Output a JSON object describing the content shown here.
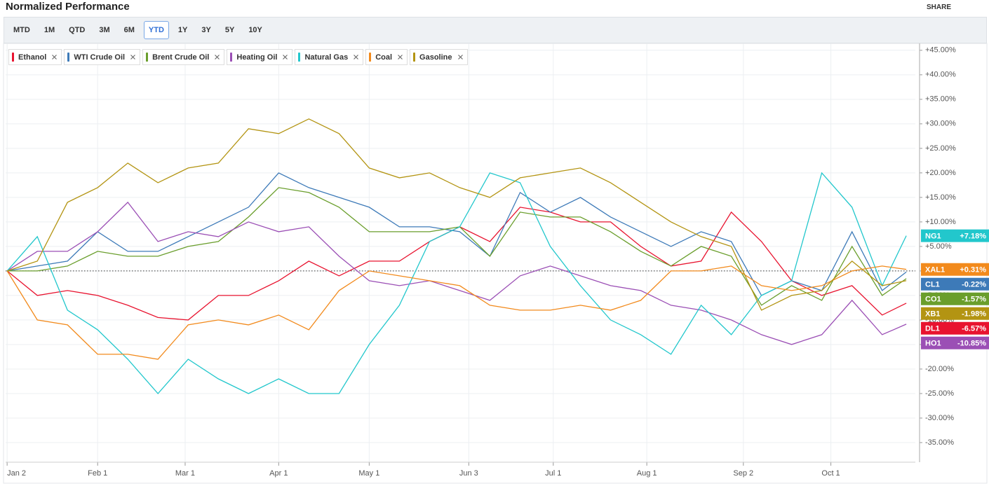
{
  "share": "SHARE",
  "toolbar": {
    "periods": [
      "MTD",
      "1M",
      "QTD",
      "3M",
      "6M",
      "YTD",
      "1Y",
      "3Y",
      "5Y",
      "10Y"
    ],
    "active": "YTD"
  },
  "chart_data": {
    "type": "line",
    "title": "Normalized Performance",
    "x": [
      2,
      12,
      22,
      32,
      42,
      52,
      62,
      72,
      82,
      92,
      102,
      112,
      122,
      132,
      142,
      152,
      162,
      172,
      182,
      192,
      202,
      212,
      222,
      232,
      242,
      252,
      262,
      272,
      282,
      292,
      300
    ],
    "xlim": [
      1.5,
      303
    ],
    "xticks": [
      {
        "value": 2,
        "label": "Jan 2"
      },
      {
        "value": 32,
        "label": "Feb 1"
      },
      {
        "value": 61,
        "label": "Mar 1"
      },
      {
        "value": 92,
        "label": "Apr 1"
      },
      {
        "value": 122,
        "label": "May 1"
      },
      {
        "value": 155,
        "label": "Jun 3"
      },
      {
        "value": 183,
        "label": "Jul 1"
      },
      {
        "value": 214,
        "label": "Aug 1"
      },
      {
        "value": 246,
        "label": "Sep 2"
      },
      {
        "value": 275,
        "label": "Oct 1"
      }
    ],
    "ylim": [
      -39,
      46.4
    ],
    "yticks": [
      {
        "value": 45,
        "label": "+45.00%"
      },
      {
        "value": 40,
        "label": "+40.00%"
      },
      {
        "value": 35,
        "label": "+35.00%"
      },
      {
        "value": 30,
        "label": "+30.00%"
      },
      {
        "value": 25,
        "label": "+25.00%"
      },
      {
        "value": 20,
        "label": "+20.00%"
      },
      {
        "value": 15,
        "label": "+15.00%"
      },
      {
        "value": 10,
        "label": "+10.00%"
      },
      {
        "value": 5,
        "label": "+5.00%"
      },
      {
        "value": 0,
        "label": "0.00%"
      },
      {
        "value": -5,
        "label": "-5.00%"
      },
      {
        "value": -10,
        "label": "-10.00%"
      },
      {
        "value": -15,
        "label": "-15.00%"
      },
      {
        "value": -20,
        "label": "-20.00%"
      },
      {
        "value": -25,
        "label": "-25.00%"
      },
      {
        "value": -30,
        "label": "-30.00%"
      },
      {
        "value": -35,
        "label": "-35.00%"
      }
    ],
    "grid": true,
    "series": [
      {
        "name": "Ethanol",
        "ticker": "DL1",
        "end_label": "-6.57%",
        "color": "#e8132f",
        "values": [
          0,
          -5,
          -4,
          -5,
          -7,
          -9.5,
          -10,
          -5,
          -5,
          -2,
          2,
          -1,
          2,
          2,
          6,
          9,
          6,
          13,
          12,
          10,
          10,
          5,
          1,
          2,
          12,
          6,
          -2,
          -5,
          -3,
          -9,
          -6.57
        ]
      },
      {
        "name": "WTI Crude Oil",
        "ticker": "CL1",
        "end_label": "-0.22%",
        "color": "#3d7ab8",
        "values": [
          0,
          1,
          2,
          8,
          4,
          4,
          7,
          10,
          13,
          20,
          17,
          15,
          13,
          9,
          9,
          8,
          3,
          16,
          12,
          15,
          11,
          8,
          5,
          8,
          6,
          -5,
          -2,
          -4,
          8,
          -4,
          -0.22
        ]
      },
      {
        "name": "Brent Crude Oil",
        "ticker": "CO1",
        "end_label": "-1.57%",
        "color": "#6a9e2c",
        "values": [
          0,
          0,
          1,
          4,
          3,
          3,
          5,
          6,
          11,
          17,
          16,
          13,
          8,
          8,
          8,
          9,
          3,
          12,
          11,
          11,
          8,
          4,
          1,
          5,
          3,
          -7,
          -3,
          -6,
          5,
          -5,
          -1.57
        ]
      },
      {
        "name": "Heating Oil",
        "ticker": "HO1",
        "end_label": "-10.85%",
        "color": "#9b4fb5",
        "values": [
          0,
          4,
          4,
          8,
          14,
          6,
          8,
          7,
          10,
          8,
          9,
          3,
          -2,
          -3,
          -2,
          -4,
          -6,
          -1,
          1,
          -1,
          -3,
          -4,
          -7,
          -8,
          -10,
          -13,
          -15,
          -13,
          -6,
          -13,
          -10.85
        ]
      },
      {
        "name": "Natural Gas",
        "ticker": "NG1",
        "end_label": "+7.18%",
        "color": "#22c7cc",
        "values": [
          0,
          7,
          -8,
          -12,
          -18,
          -25,
          -18,
          -22,
          -25,
          -22,
          -25,
          -25,
          -15,
          -7,
          6,
          9,
          20,
          18,
          5,
          -3,
          -10,
          -13,
          -17,
          -7,
          -13,
          -5,
          -2,
          20,
          13,
          -3,
          7.18
        ]
      },
      {
        "name": "Coal",
        "ticker": "XAL1",
        "end_label": "+0.31%",
        "color": "#f28a1c",
        "values": [
          0,
          -10,
          -11,
          -17,
          -17,
          -18,
          -11,
          -10,
          -11,
          -9,
          -12,
          -4,
          0,
          -1,
          -2,
          -3,
          -7,
          -8,
          -8,
          -7,
          -8,
          -6,
          0,
          0,
          1,
          -3,
          -4,
          -3,
          0,
          1,
          0.31
        ]
      },
      {
        "name": "Gasoline",
        "ticker": "XB1",
        "end_label": "-1.98%",
        "color": "#b39412",
        "values": [
          0,
          2,
          14,
          17,
          22,
          18,
          21,
          22,
          29,
          28,
          31,
          28,
          21,
          19,
          20,
          17,
          15,
          19,
          20,
          21,
          18,
          14,
          10,
          7,
          5,
          -8,
          -5,
          -4,
          2,
          -3,
          -1.98
        ]
      }
    ]
  }
}
